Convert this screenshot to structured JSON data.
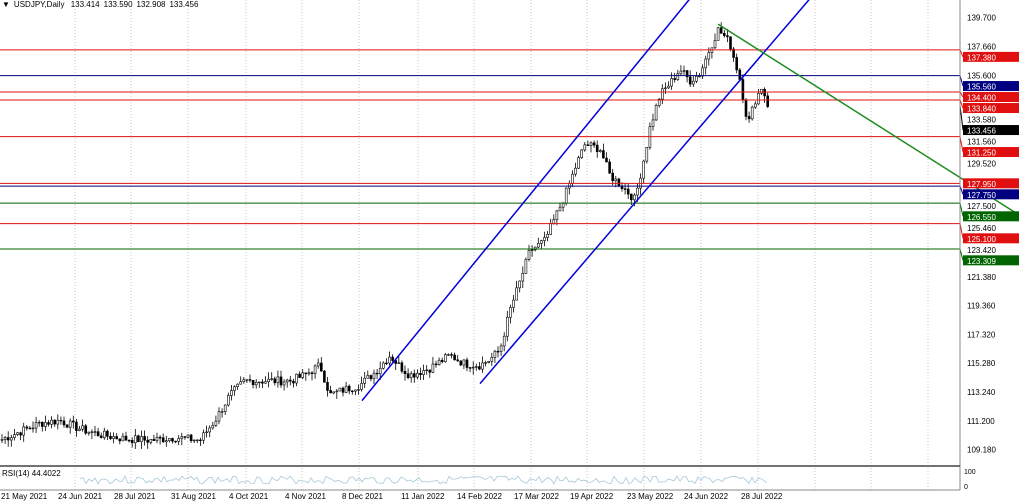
{
  "header": {
    "arrow": "▼",
    "symbol": "USDJPY,Daily",
    "open": "133.414",
    "high": "133.590",
    "low": "132.908",
    "close": "133.456"
  },
  "chart_data": {
    "type": "candlestick",
    "symbol": "USDJPY",
    "timeframe": "Daily",
    "ylim": [
      109.18,
      139.7
    ],
    "y_ticks": [
      "139.700",
      "137.660",
      "135.600",
      "133.580",
      "131.560",
      "129.520",
      "127.500",
      "125.460",
      "123.420",
      "121.380",
      "119.360",
      "117.320",
      "115.280",
      "113.240",
      "111.200",
      "109.180"
    ],
    "x_ticks": [
      "21 May 2021",
      "24 Jun 2021",
      "28 Jul 2021",
      "31 Aug 2021",
      "4 Oct 2021",
      "4 Nov 2021",
      "8 Dec 2021",
      "11 Jan 2022",
      "14 Feb 2022",
      "17 Mar 2022",
      "19 Apr 2022",
      "23 May 2022",
      "24 Jun 2022",
      "28 Jul 2022"
    ],
    "approx_close_path": [
      [
        0,
        109.8
      ],
      [
        20,
        110.4
      ],
      [
        40,
        111.0
      ],
      [
        60,
        111.2
      ],
      [
        80,
        110.6
      ],
      [
        100,
        110.2
      ],
      [
        125,
        109.9
      ],
      [
        150,
        109.8
      ],
      [
        175,
        110.0
      ],
      [
        200,
        109.8
      ],
      [
        215,
        111.2
      ],
      [
        230,
        113.0
      ],
      [
        245,
        114.0
      ],
      [
        270,
        114.0
      ],
      [
        290,
        114.0
      ],
      [
        305,
        114.4
      ],
      [
        320,
        115.1
      ],
      [
        330,
        113.0
      ],
      [
        345,
        113.4
      ],
      [
        360,
        113.7
      ],
      [
        375,
        114.6
      ],
      [
        390,
        115.8
      ],
      [
        400,
        115.0
      ],
      [
        410,
        114.4
      ],
      [
        430,
        114.9
      ],
      [
        450,
        115.8
      ],
      [
        465,
        115.2
      ],
      [
        480,
        115.1
      ],
      [
        490,
        115.5
      ],
      [
        500,
        116.2
      ],
      [
        510,
        119.0
      ],
      [
        520,
        121.0
      ],
      [
        530,
        123.2
      ],
      [
        545,
        123.9
      ],
      [
        555,
        125.5
      ],
      [
        565,
        127.1
      ],
      [
        575,
        129.0
      ],
      [
        585,
        130.7
      ],
      [
        600,
        130.4
      ],
      [
        610,
        128.5
      ],
      [
        620,
        127.9
      ],
      [
        635,
        126.8
      ],
      [
        645,
        130.0
      ],
      [
        650,
        131.9
      ],
      [
        660,
        134.2
      ],
      [
        670,
        135.0
      ],
      [
        680,
        136.0
      ],
      [
        690,
        135.2
      ],
      [
        700,
        135.7
      ],
      [
        710,
        137.5
      ],
      [
        718,
        138.8
      ],
      [
        725,
        138.3
      ],
      [
        730,
        137.8
      ],
      [
        740,
        135.3
      ],
      [
        748,
        132.1
      ],
      [
        755,
        133.8
      ],
      [
        762,
        134.8
      ],
      [
        768,
        133.46
      ]
    ],
    "horizontal_levels": [
      {
        "price": 137.38,
        "label": "137.380",
        "color": "#e01010"
      },
      {
        "price": 135.56,
        "label": "135.560",
        "color": "#000080"
      },
      {
        "price": 134.4,
        "label": "134.400",
        "color": "#e01010"
      },
      {
        "price": 133.84,
        "label": "133.840",
        "color": "#e01010"
      },
      {
        "price": 131.25,
        "label": "131.250",
        "color": "#e01010"
      },
      {
        "price": 127.95,
        "label": "127.950",
        "color": "#e01010"
      },
      {
        "price": 127.75,
        "label": "127.750",
        "color": "#000080"
      },
      {
        "price": 126.55,
        "label": "126.550",
        "color": "#006400"
      },
      {
        "price": 125.1,
        "label": "125.100",
        "color": "#e01010"
      },
      {
        "price": 123.309,
        "label": "123.309",
        "color": "#006400"
      }
    ],
    "current_price": {
      "price": 133.456,
      "label": "133.456",
      "color": "#000000"
    },
    "trendlines": [
      {
        "name": "channel-upper",
        "color": "#0000dd",
        "from": [
          362,
          112.6
        ],
        "to": [
          690,
          141.0
        ]
      },
      {
        "name": "channel-lower",
        "color": "#0000dd",
        "from": [
          480,
          113.8
        ],
        "to": [
          810,
          141.0
        ]
      },
      {
        "name": "downtrend",
        "color": "#1e8c1e",
        "from": [
          718,
          139.2
        ],
        "to": [
          1015,
          125.9
        ]
      }
    ],
    "indicator": {
      "label": "RSI(14) 44.4022",
      "scale": [
        "100",
        "0"
      ],
      "color": "#a8c8d8"
    }
  }
}
